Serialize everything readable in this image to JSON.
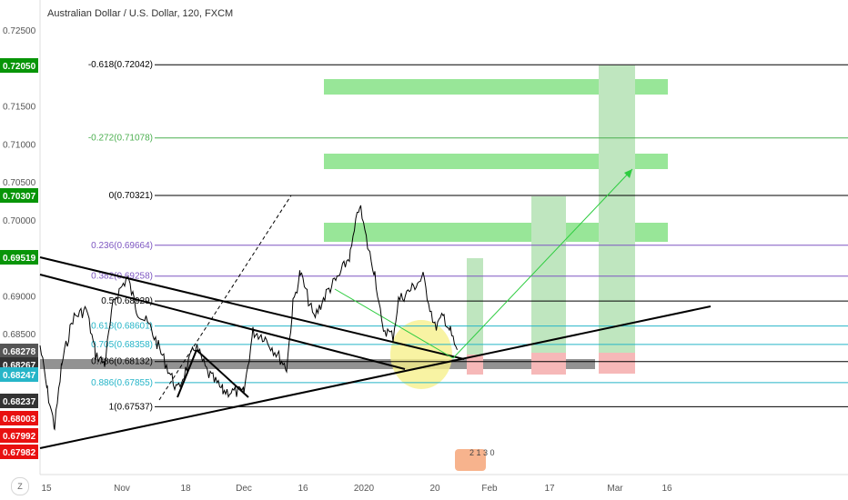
{
  "title": "Australian Dollar / U.S. Dollar, 120, FXCM",
  "y_axis": {
    "ticks": [
      "0.72500",
      "0.71500",
      "0.71000",
      "0.70500",
      "0.70000",
      "0.69000",
      "0.68500"
    ],
    "tick_values": [
      0.725,
      0.715,
      0.71,
      0.705,
      0.7,
      0.69,
      0.685
    ]
  },
  "x_axis": {
    "ticks": [
      "15",
      "Nov",
      "18",
      "Dec",
      "16",
      "2020",
      "20",
      "Feb",
      "17",
      "Mar",
      "16"
    ]
  },
  "price_badges": [
    {
      "label": "0.72050",
      "value": 0.7205,
      "color": "#089508"
    },
    {
      "label": "0.70307",
      "value": 0.70307,
      "color": "#089508"
    },
    {
      "label": "0.69519",
      "value": 0.69519,
      "color": "#089508"
    },
    {
      "label": "0.68278",
      "value": 0.68278,
      "color": "#555555"
    },
    {
      "label": "0.68267",
      "value": 0.68267,
      "color": "#333333"
    },
    {
      "label": "0.68247",
      "value": 0.68247,
      "color": "#26b5c8"
    },
    {
      "label": "0.68237",
      "value": 0.68237,
      "color": "#333333"
    },
    {
      "label": "0.68003",
      "value": 0.68003,
      "color": "#e81010"
    },
    {
      "label": "0.67992",
      "value": 0.67992,
      "color": "#e81010"
    },
    {
      "label": "0.67982",
      "value": 0.67982,
      "color": "#e81010"
    }
  ],
  "fib_levels": [
    {
      "label": "-0.618(0.72042)",
      "value": 0.72042,
      "color": "#000000"
    },
    {
      "label": "-0.272(0.71078)",
      "value": 0.71078,
      "color": "#4caf50"
    },
    {
      "label": "0(0.70321)",
      "value": 0.70321,
      "color": "#000000"
    },
    {
      "label": "0.236(0.69664)",
      "value": 0.69664,
      "color": "#7e57c2"
    },
    {
      "label": "0.382(0.69258)",
      "value": 0.69258,
      "color": "#7e57c2"
    },
    {
      "label": "0.5(0.68929)",
      "value": 0.68929,
      "color": "#000000"
    },
    {
      "label": "0.618(0.68601)",
      "value": 0.68601,
      "color": "#26b5c8"
    },
    {
      "label": "0.705(0.68358)",
      "value": 0.68358,
      "color": "#26b5c8"
    },
    {
      "label": "0.786(0.68132)",
      "value": 0.68132,
      "color": "#000000"
    },
    {
      "label": "0.886(0.67855)",
      "value": 0.67855,
      "color": "#26b5c8"
    },
    {
      "label": "1(0.67537)",
      "value": 0.67537,
      "color": "#000000"
    }
  ],
  "colors": {
    "zone_green": "#7ee07e",
    "target_green": "#bfe6bf",
    "stop_red": "#f6b8b8",
    "highlight_yellow": "#f6f08c",
    "trendline": "#000000",
    "arrow_green": "#2ecc40"
  },
  "widgets": {
    "z_button": "Z",
    "logo_text": "2 1 3 0"
  }
}
